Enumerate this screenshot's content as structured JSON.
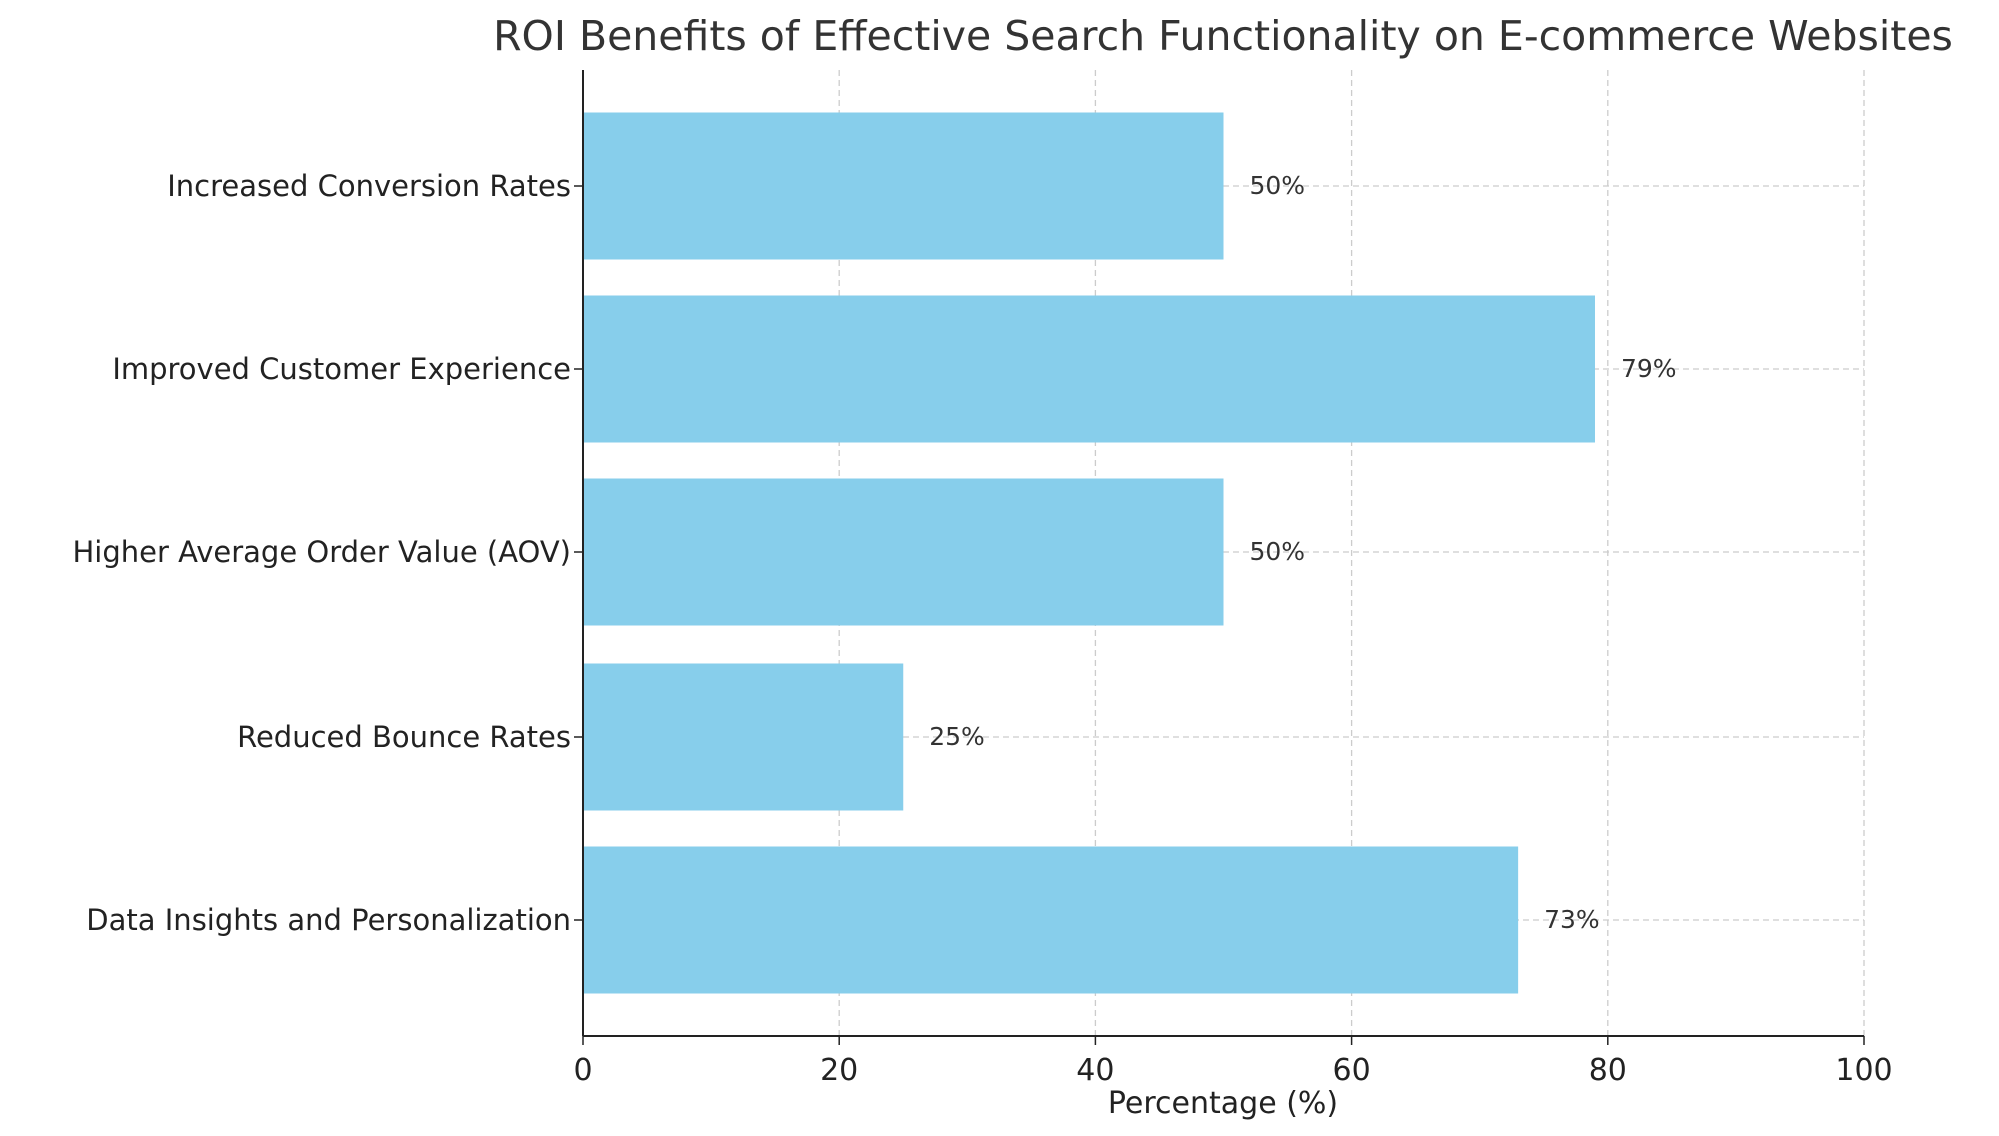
{
  "chart_data": {
    "type": "bar",
    "orientation": "horizontal",
    "title": "ROI Benefits of Effective Search Functionality on E-commerce Websites",
    "xlabel": "Percentage (%)",
    "ylabel": "",
    "categories": [
      "Increased Conversion Rates",
      "Improved Customer Experience",
      "Higher Average Order Value (AOV)",
      "Reduced Bounce Rates",
      "Data Insights and Personalization"
    ],
    "values": [
      50,
      79,
      50,
      25,
      73
    ],
    "data_labels": [
      "50%",
      "79%",
      "50%",
      "25%",
      "73%"
    ],
    "xlim": [
      0,
      100
    ],
    "xticks": [
      0,
      20,
      40,
      60,
      80,
      100
    ],
    "xtick_labels": [
      "0",
      "20",
      "40",
      "60",
      "80",
      "100"
    ],
    "grid": true,
    "bar_color": "#87CEEB",
    "text_color": "#333333"
  }
}
